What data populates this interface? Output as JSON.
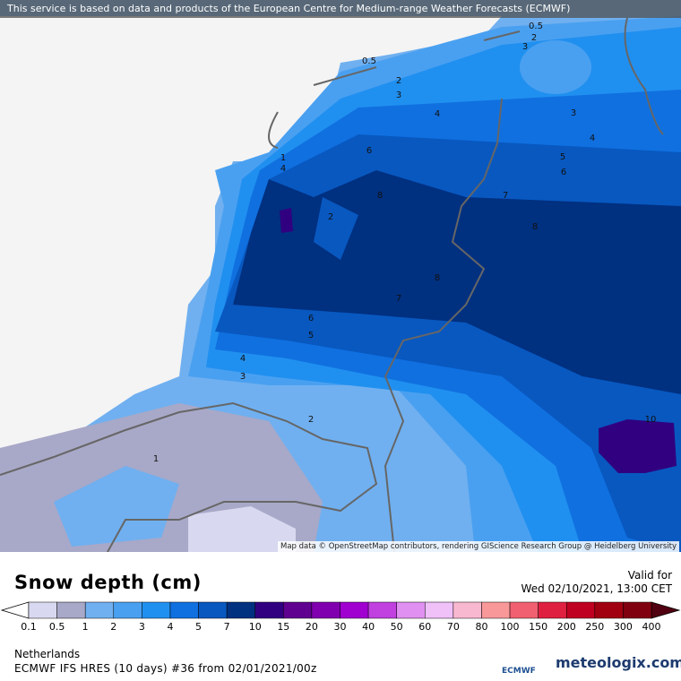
{
  "header": {
    "notice": "This service is based on data and products of the European Centre for Medium-range Weather Forecasts (ECMWF)"
  },
  "map": {
    "attribution": "Map data © OpenStreetMap contributors, rendering GIScience Research Group @ Heidelberg University",
    "contour_labels": [
      0.5,
      2,
      3,
      4,
      1,
      4,
      6,
      8,
      2,
      7,
      8,
      8,
      7,
      6,
      5,
      4,
      3,
      2,
      1,
      3,
      4,
      5,
      6,
      10,
      0.5,
      2,
      3
    ]
  },
  "legend": {
    "title": "Snow depth (cm)",
    "ticks": [
      0.1,
      0.5,
      1,
      2,
      3,
      4,
      5,
      7,
      10,
      15,
      20,
      30,
      40,
      50,
      60,
      70,
      80,
      100,
      150,
      200,
      250,
      300,
      400
    ],
    "colors": [
      "#d8d8f0",
      "#a8a8c8",
      "#70b0f0",
      "#4aa0f0",
      "#2090f0",
      "#1070e0",
      "#0858c0",
      "#003080",
      "#300080",
      "#600090",
      "#8000b0",
      "#a000d0",
      "#c040e0",
      "#e090f0",
      "#f0c0f8",
      "#f8b8d0",
      "#f89898",
      "#f06070",
      "#e02040",
      "#c00020",
      "#a00010",
      "#800010"
    ]
  },
  "valid": {
    "label": "Valid for",
    "time": "Wed 02/10/2021, 13:00 CET"
  },
  "footer": {
    "region": "Netherlands",
    "model": "ECMWF IFS HRES (10 days) #36 from 02/01/2021/00z",
    "logos": [
      "ECMWF",
      "meteologix.com"
    ]
  }
}
